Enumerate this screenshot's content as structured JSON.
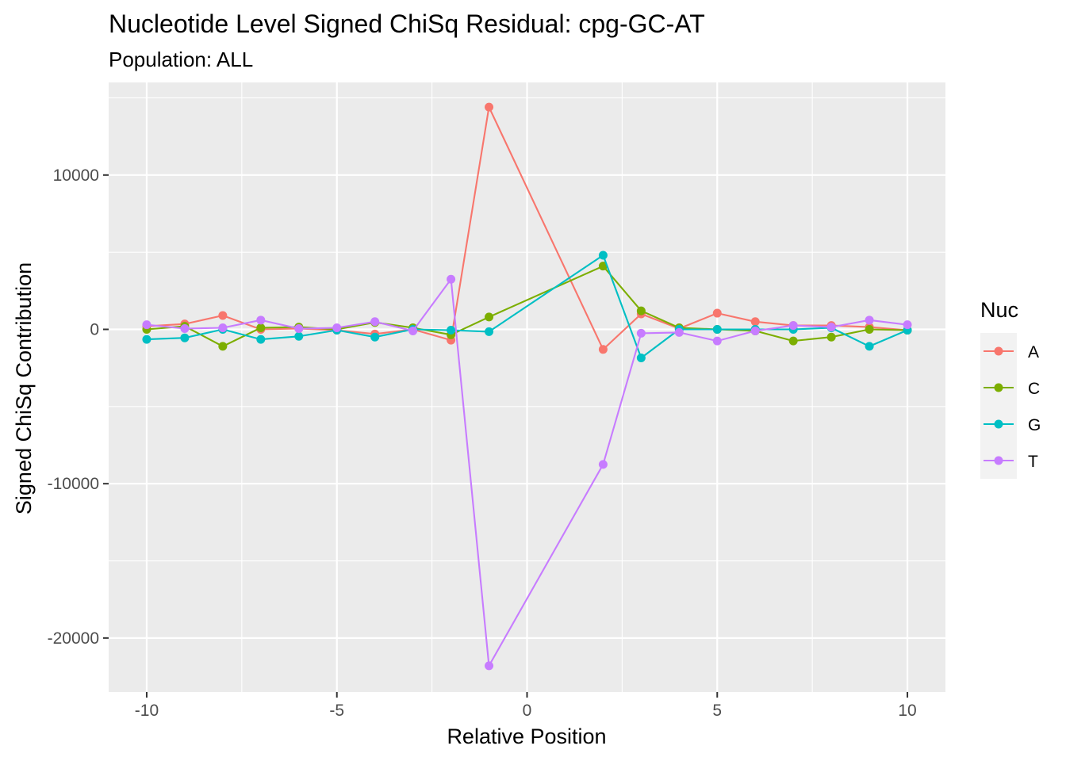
{
  "chart_data": {
    "type": "line",
    "title": "Nucleotide Level Signed ChiSq Residual: cpg-GC-AT",
    "subtitle": "Population: ALL",
    "xlabel": "Relative Position",
    "ylabel": "Signed ChiSq Contribution",
    "xlim": [
      -11,
      11
    ],
    "ylim": [
      -23500,
      16000
    ],
    "x_ticks": [
      -10,
      -5,
      0,
      5,
      10
    ],
    "x_tick_labels": [
      "-10",
      "-5",
      "0",
      "5",
      "10"
    ],
    "x_minor_ticks": [
      -7.5,
      -2.5,
      2.5,
      7.5
    ],
    "y_ticks": [
      -20000,
      -10000,
      0,
      10000
    ],
    "y_tick_labels": [
      "-20000",
      "-10000",
      "0",
      "10000"
    ],
    "y_minor_ticks": [
      -15000,
      -5000,
      5000,
      15000
    ],
    "grid": true,
    "legend": {
      "title": "Nuc",
      "position": "right"
    },
    "x": [
      -10,
      -9,
      -8,
      -7,
      -6,
      -5,
      -4,
      -3,
      -2,
      -1,
      2,
      3,
      4,
      5,
      6,
      7,
      8,
      9,
      10
    ],
    "series": [
      {
        "name": "A",
        "color": "#F8766D",
        "values": [
          200,
          350,
          900,
          0,
          50,
          -50,
          -300,
          0,
          -700,
          14400,
          -1300,
          1000,
          50,
          1050,
          500,
          250,
          250,
          150,
          -50
        ]
      },
      {
        "name": "C",
        "color": "#7CAE00",
        "values": [
          0,
          200,
          -1100,
          100,
          150,
          0,
          450,
          100,
          -350,
          800,
          4100,
          1200,
          100,
          0,
          -100,
          -750,
          -500,
          0,
          -50
        ]
      },
      {
        "name": "G",
        "color": "#00BFC4",
        "values": [
          -650,
          -550,
          0,
          -650,
          -450,
          -50,
          -500,
          0,
          -50,
          -150,
          4800,
          -1850,
          0,
          0,
          0,
          0,
          100,
          -1100,
          -50
        ]
      },
      {
        "name": "T",
        "color": "#C77CFF",
        "values": [
          300,
          50,
          100,
          600,
          50,
          100,
          500,
          -100,
          3250,
          -21800,
          -8750,
          -250,
          -200,
          -750,
          -100,
          250,
          150,
          600,
          300
        ]
      }
    ]
  }
}
